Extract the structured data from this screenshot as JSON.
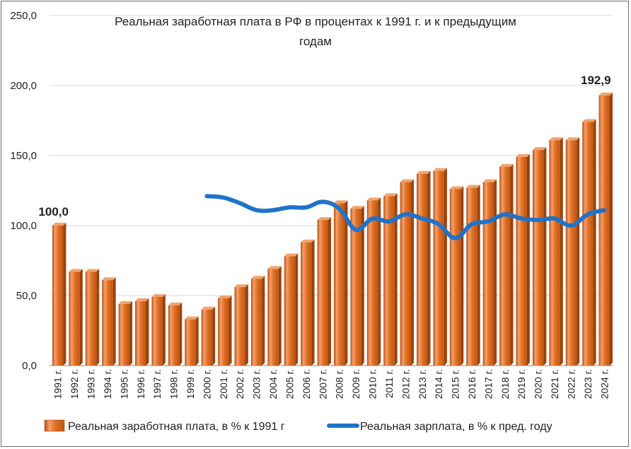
{
  "chart_data": {
    "type": "bar",
    "title_line1": "Реальная заработная плата в РФ в процентах к 1991 г. и к предыдущим",
    "title_line2": "годам",
    "categories": [
      "1991 г.",
      "1992 г.",
      "1993 г.",
      "1994 г.",
      "1995 г.",
      "1996 г.",
      "1997 г.",
      "1998 г.",
      "1999 г.",
      "2000 г.",
      "2001 г.",
      "2002 г.",
      "2003 г.",
      "2004 г.",
      "2005 г.",
      "2006 г.",
      "2007 г.",
      "2008 г.",
      "2009 г.",
      "2010 г.",
      "2011 г.",
      "2012 г.",
      "2013 г.",
      "2014 г.",
      "2015 г.",
      "2016 г.",
      "2017 г.",
      "2018 г.",
      "2019 г.",
      "2020 г.",
      "2021 г.",
      "2022 г.",
      "2023 г.",
      "2024 г."
    ],
    "series": [
      {
        "name": "Реальная заработная плата, в % к 1991 г",
        "type": "bar",
        "color": "#d9641c",
        "values": [
          100.0,
          67,
          67,
          61,
          44,
          46,
          49,
          43,
          33,
          40,
          48,
          56,
          62,
          69,
          78,
          88,
          104,
          116,
          112,
          118,
          121,
          131,
          137,
          139,
          126,
          127,
          131,
          142,
          149,
          154,
          161,
          161,
          174,
          192.9
        ]
      },
      {
        "name": "Реальная зарплата, в % к пред. году",
        "type": "line",
        "color": "#1f73c9",
        "values": [
          null,
          null,
          null,
          null,
          null,
          null,
          null,
          null,
          null,
          121,
          120,
          116,
          111,
          111,
          113,
          113,
          117,
          112,
          97,
          105,
          103,
          108,
          105,
          101,
          91,
          101,
          103,
          108,
          105,
          104,
          105,
          100,
          108,
          111
        ]
      }
    ],
    "data_labels": [
      "100,0",
      "192,9"
    ],
    "y_ticks": [
      "0,0",
      "50,0",
      "100,0",
      "150,0",
      "200,0",
      "250,0"
    ],
    "ylim": [
      0,
      250
    ],
    "grid": true,
    "legend_position": "bottom"
  }
}
